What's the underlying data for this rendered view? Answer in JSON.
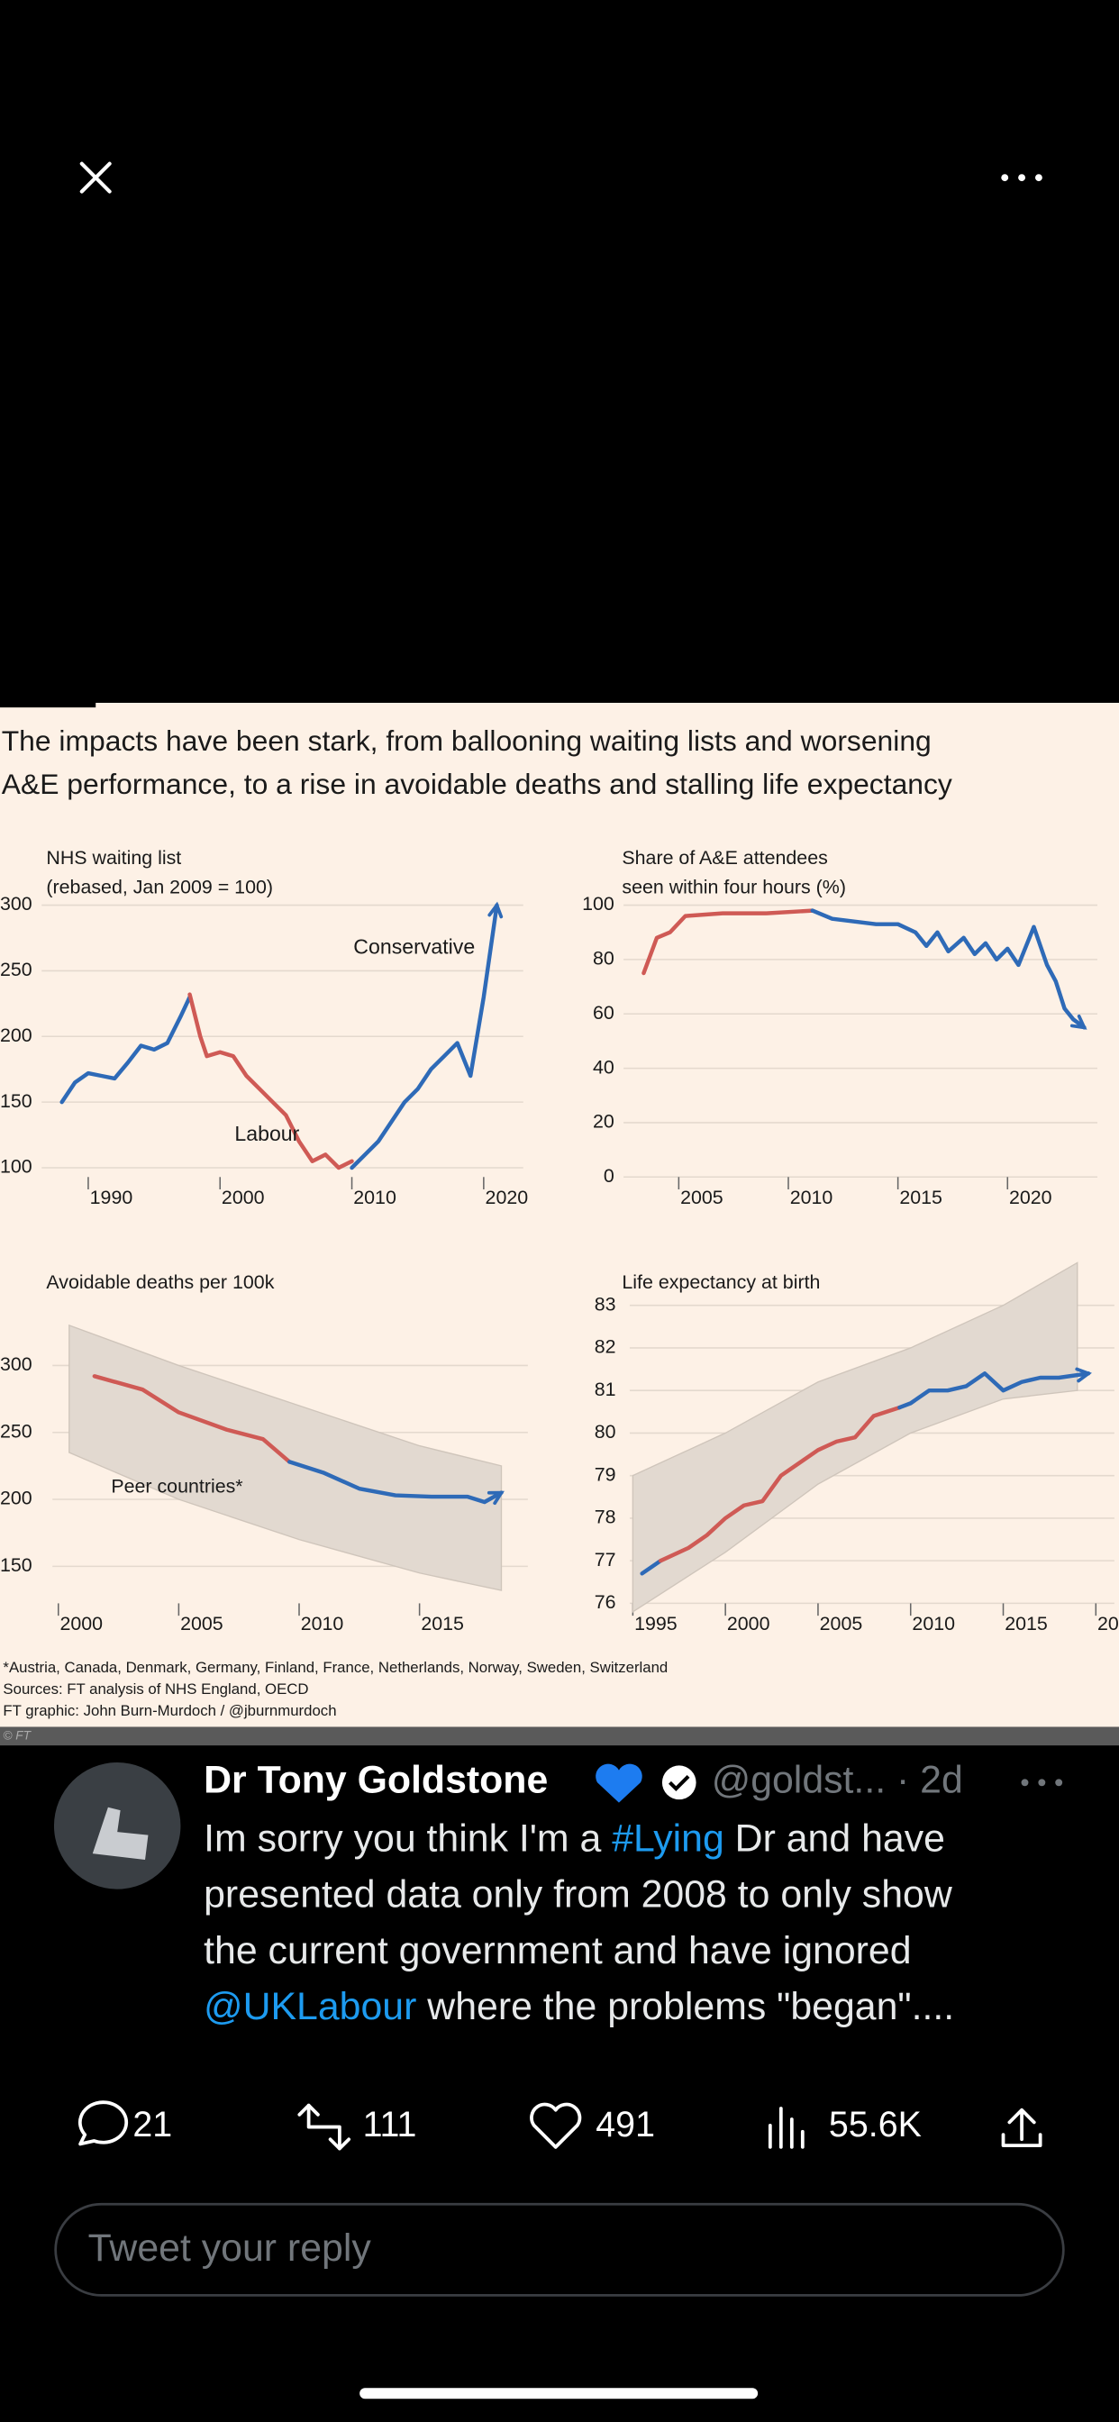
{
  "headline": [
    "The impacts have been stark, from ballooning waiting lists and worsening",
    "A&E performance, to a rise in avoidable deaths and stalling life expectancy"
  ],
  "footnotes": [
    "*Austria, Canada, Denmark, Germany, Finland, France, Netherlands, Norway, Sweden, Switzerland",
    "Sources: FT analysis of NHS England, OECD",
    "FT graphic: John Burn-Murdoch / @jburnmurdoch"
  ],
  "credit": "© FT",
  "chart_data": [
    {
      "type": "line",
      "title": "NHS waiting list",
      "subtitle": "(rebased, Jan 2009 = 100)",
      "xlim": [
        1986,
        2023
      ],
      "xticks": [
        1990,
        2000,
        2010,
        2020
      ],
      "ylim": [
        100,
        300
      ],
      "yticks": [
        100,
        150,
        200,
        250,
        300
      ],
      "grid": true,
      "annotations": [
        {
          "text": "Conservative",
          "color": "#2e6ab7"
        },
        {
          "text": "Labour",
          "color": "#cf5a55"
        }
      ],
      "series": [
        {
          "color": "#2e6ab7",
          "x": [
            1988,
            1989,
            1990,
            1991,
            1992,
            1993,
            1994,
            1995,
            1996,
            1997,
            1997.7
          ],
          "values": [
            150,
            165,
            172,
            170,
            168,
            180,
            193,
            190,
            195,
            215,
            230
          ]
        },
        {
          "color": "#cf5a55",
          "x": [
            1997.7,
            1998.5,
            1999,
            2000,
            2001,
            2002,
            2003,
            2004,
            2005,
            2006,
            2007,
            2008,
            2009,
            2010
          ],
          "values": [
            232,
            200,
            185,
            188,
            185,
            170,
            160,
            150,
            140,
            120,
            105,
            110,
            100,
            105
          ]
        },
        {
          "color": "#2e6ab7",
          "x": [
            2010,
            2011,
            2012,
            2013,
            2014,
            2015,
            2016,
            2017,
            2018,
            2019,
            2020,
            2021
          ],
          "values": [
            100,
            110,
            120,
            135,
            150,
            160,
            175,
            185,
            195,
            170,
            230,
            300
          ]
        }
      ]
    },
    {
      "type": "line",
      "title": "Share of A&E attendees",
      "subtitle": "seen within four hours (%)",
      "xlim": [
        2002.2,
        2024.1
      ],
      "xticks": [
        2005,
        2010,
        2015,
        2020
      ],
      "ylim": [
        0,
        100
      ],
      "yticks": [
        0,
        20,
        40,
        60,
        80,
        100
      ],
      "grid": true,
      "series": [
        {
          "color": "#cf5a55",
          "x": [
            2003.4,
            2004,
            2004.6,
            2005.3,
            2007,
            2009,
            2011.1
          ],
          "values": [
            75,
            88,
            90,
            96,
            97,
            97,
            98
          ]
        },
        {
          "color": "#2e6ab7",
          "x": [
            2011.1,
            2012,
            2013,
            2014,
            2015,
            2015.8,
            2016.3,
            2016.8,
            2017.3,
            2018,
            2018.5,
            2019,
            2019.5,
            2020,
            2020.5,
            2021.2,
            2021.8,
            2022.2,
            2022.6,
            2023,
            2023.5
          ],
          "values": [
            98,
            95,
            94,
            93,
            93,
            90,
            85,
            90,
            83,
            88,
            82,
            86,
            80,
            84,
            78,
            92,
            78,
            72,
            62,
            58,
            55
          ]
        }
      ]
    },
    {
      "type": "line",
      "title": "Avoidable deaths per 100k",
      "xlim": [
        1999.5,
        2019.5
      ],
      "xticks": [
        2000,
        2005,
        2010,
        2015
      ],
      "ylim": [
        125,
        345
      ],
      "yticks": [
        150,
        200,
        250,
        300
      ],
      "grid": true,
      "annotations": [
        {
          "text": "Peer countries*",
          "color": "#1a1a1a"
        }
      ],
      "band": {
        "color": "#e2d9d0",
        "x": [
          2000.45,
          2005,
          2010,
          2015,
          2018.4
        ],
        "upper": [
          330,
          300,
          270,
          240,
          225
        ],
        "lower": [
          235,
          200,
          170,
          145,
          132
        ]
      },
      "series": [
        {
          "color": "#cf5a55",
          "x": [
            2001.5,
            2003.5,
            2005,
            2007,
            2008.5,
            2009.6
          ],
          "values": [
            292,
            282,
            265,
            252,
            245,
            228
          ]
        },
        {
          "color": "#2e6ab7",
          "x": [
            2009.6,
            2011,
            2012.5,
            2014,
            2015.5,
            2017,
            2017.7,
            2018.4
          ],
          "values": [
            228,
            220,
            208,
            203,
            202,
            202,
            198,
            205
          ]
        }
      ]
    },
    {
      "type": "line",
      "title": "Life expectancy at birth",
      "xlim": [
        1994.5,
        2021
      ],
      "xticks": [
        1995,
        2000,
        2005,
        2010,
        2015,
        2020
      ],
      "ylim": [
        75.8,
        84.2
      ],
      "yticks": [
        76,
        77,
        78,
        79,
        80,
        81,
        82,
        83
      ],
      "grid": true,
      "band": {
        "color": "#e2d9d0",
        "x": [
          1995,
          2000,
          2005,
          2010,
          2015,
          2019
        ],
        "upper": [
          79,
          80,
          81.2,
          82,
          83,
          84
        ],
        "lower": [
          75.8,
          77.2,
          78.8,
          80,
          80.8,
          81
        ]
      },
      "series": [
        {
          "color": "#2e6ab7",
          "x": [
            1995.5,
            1996.5
          ],
          "values": [
            76.7,
            77
          ]
        },
        {
          "color": "#cf5a55",
          "x": [
            1996.5,
            1998,
            1999,
            2000,
            2001,
            2002,
            2003,
            2004,
            2005,
            2006,
            2007,
            2008,
            2009.4
          ],
          "values": [
            77,
            77.3,
            77.6,
            78,
            78.3,
            78.4,
            79,
            79.3,
            79.6,
            79.8,
            79.9,
            80.4,
            80.6
          ]
        },
        {
          "color": "#2e6ab7",
          "x": [
            2009.4,
            2010,
            2011,
            2012,
            2013,
            2014,
            2015,
            2016,
            2017,
            2018,
            2019.6
          ],
          "values": [
            80.6,
            80.7,
            81,
            81,
            81.1,
            81.4,
            81,
            81.2,
            81.3,
            81.3,
            81.4
          ]
        }
      ]
    }
  ],
  "tweet": {
    "name": "Dr Tony Goldstone",
    "meta": "@goldst... · 2d",
    "body": [
      [
        {
          "text": "Im sorry you think I'm a ",
          "link": false
        },
        {
          "text": "#Lying",
          "link": true
        },
        {
          "text": " Dr and have",
          "link": false
        }
      ],
      [
        {
          "text": "presented data only from 2008 to only show",
          "link": false
        }
      ],
      [
        {
          "text": "the current government and have ignored",
          "link": false
        }
      ],
      [
        {
          "text": "@UKLabour",
          "link": true
        },
        {
          "text": " where the problems \"began\"....",
          "link": false
        }
      ]
    ],
    "replies": "21",
    "retweets": "111",
    "likes": "491",
    "views": "55.6K",
    "reply_placeholder": "Tweet your reply"
  }
}
